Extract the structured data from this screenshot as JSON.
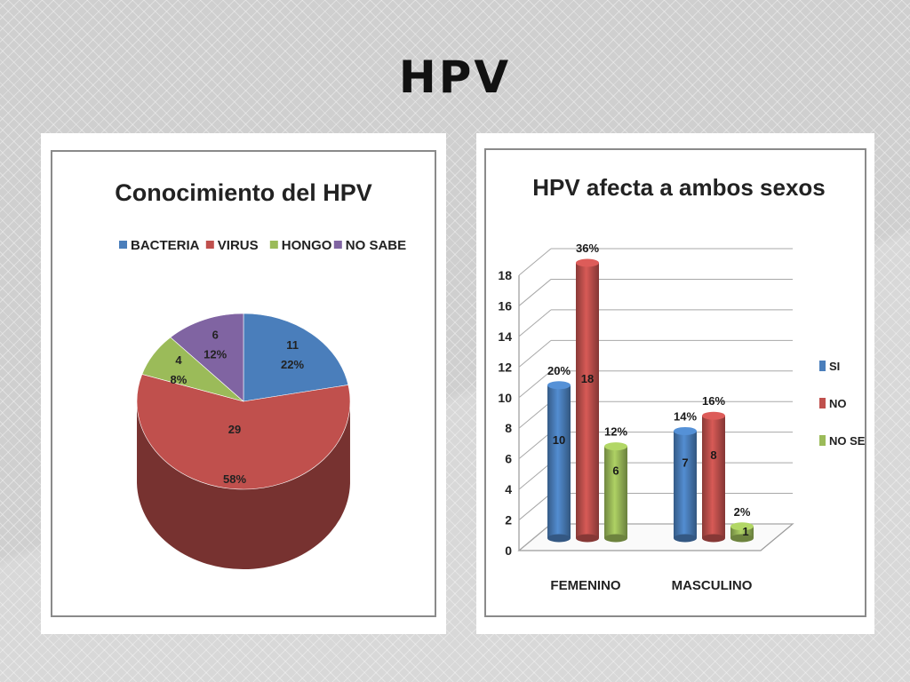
{
  "slide": {
    "title": "HPV"
  },
  "chart_data": [
    {
      "type": "pie",
      "title": "Conocimiento del HPV",
      "legend_position": "top",
      "slices": [
        {
          "label": "BACTERIA",
          "value": 11,
          "percent": "22%",
          "color": "#4a7ebb"
        },
        {
          "label": "VIRUS",
          "value": 29,
          "percent": "58%",
          "color": "#c0504d"
        },
        {
          "label": "HONGO",
          "value": 4,
          "percent": "8%",
          "color": "#9bbb59"
        },
        {
          "label": "NO SABE",
          "value": 6,
          "percent": "12%",
          "color": "#8064a2"
        }
      ]
    },
    {
      "type": "bar",
      "title": "HPV afecta a ambos sexos",
      "categories": [
        "FEMENINO",
        "MASCULINO"
      ],
      "ylim": [
        0,
        18
      ],
      "yticks": [
        "0",
        "2",
        "4",
        "6",
        "8",
        "10",
        "12",
        "14",
        "16",
        "18"
      ],
      "legend_position": "right",
      "grid": true,
      "series": [
        {
          "name": "SI",
          "color": "#4a7ebb",
          "values": [
            10,
            7
          ],
          "percents": [
            "20%",
            "14%"
          ]
        },
        {
          "name": "NO",
          "color": "#c0504d",
          "values": [
            18,
            8
          ],
          "percents": [
            "36%",
            "16%"
          ]
        },
        {
          "name": "NO SE",
          "color": "#9bbb59",
          "values": [
            6,
            1
          ],
          "percents": [
            "12%",
            "2%"
          ]
        }
      ]
    }
  ]
}
